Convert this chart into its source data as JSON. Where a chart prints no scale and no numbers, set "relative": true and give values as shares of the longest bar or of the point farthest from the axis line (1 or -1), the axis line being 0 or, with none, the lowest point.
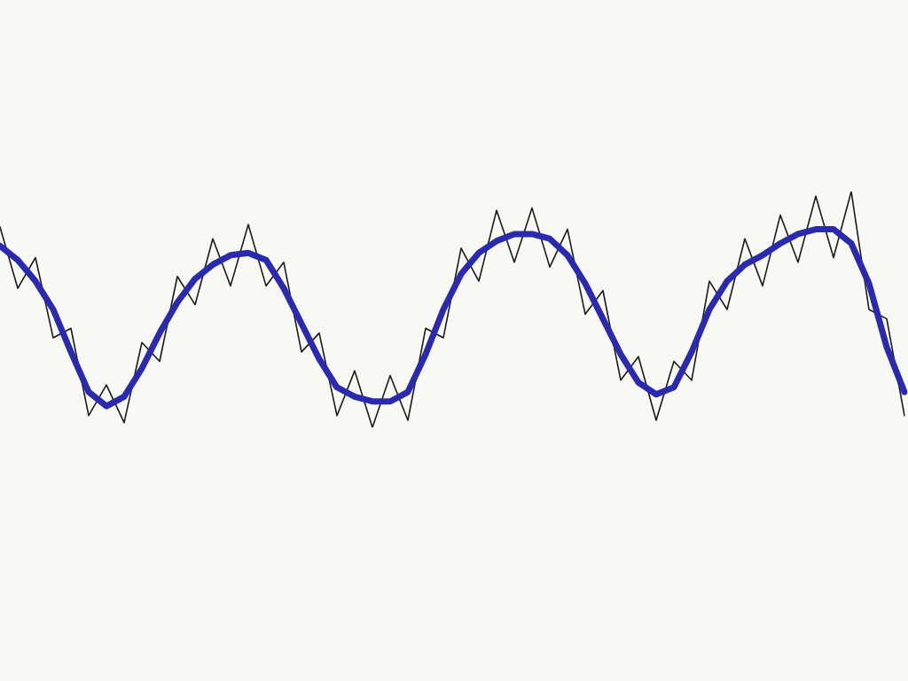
{
  "chart_data": {
    "type": "line",
    "relative": true,
    "legend": false,
    "marker": "none",
    "line_style": "solid",
    "categories": [
      null,
      null,
      null,
      null,
      null,
      null,
      null,
      null,
      null,
      null,
      null,
      null,
      null,
      null,
      null,
      null,
      null,
      null,
      null,
      null,
      null,
      null,
      null,
      null,
      null,
      null,
      null,
      null,
      null,
      null,
      null,
      null,
      null,
      null,
      null,
      null,
      null,
      null,
      null,
      null,
      null,
      null,
      null,
      null,
      null,
      null,
      null,
      null,
      null,
      null,
      null,
      null
    ],
    "series": [
      {
        "color": "#1a1a1a",
        "values": [
          0.85,
          0.59,
          0.72,
          0.38,
          0.42,
          0.05,
          0.18,
          0.02,
          0.36,
          0.28,
          0.64,
          0.52,
          0.8,
          0.6,
          0.86,
          0.6,
          0.7,
          0.32,
          0.4,
          0.05,
          0.24,
          0.0,
          0.22,
          0.03,
          0.42,
          0.38,
          0.76,
          0.62,
          0.92,
          0.7,
          0.93,
          0.68,
          0.84,
          0.48,
          0.58,
          0.2,
          0.3,
          0.03,
          0.28,
          0.2,
          0.62,
          0.5,
          0.8,
          0.6,
          0.9,
          0.7,
          0.98,
          0.72,
          1.0,
          0.5,
          0.46,
          0.05
        ]
      },
      {
        "color": "#2a2ab0",
        "values": [
          0.77,
          0.71,
          0.62,
          0.5,
          0.32,
          0.15,
          0.09,
          0.13,
          0.25,
          0.4,
          0.53,
          0.63,
          0.69,
          0.73,
          0.74,
          0.71,
          0.59,
          0.44,
          0.29,
          0.17,
          0.13,
          0.11,
          0.11,
          0.15,
          0.31,
          0.5,
          0.65,
          0.74,
          0.79,
          0.82,
          0.82,
          0.8,
          0.73,
          0.61,
          0.46,
          0.31,
          0.19,
          0.14,
          0.17,
          0.32,
          0.5,
          0.62,
          0.69,
          0.73,
          0.78,
          0.82,
          0.84,
          0.84,
          0.78,
          0.61,
          0.34,
          0.15
        ]
      }
    ]
  }
}
